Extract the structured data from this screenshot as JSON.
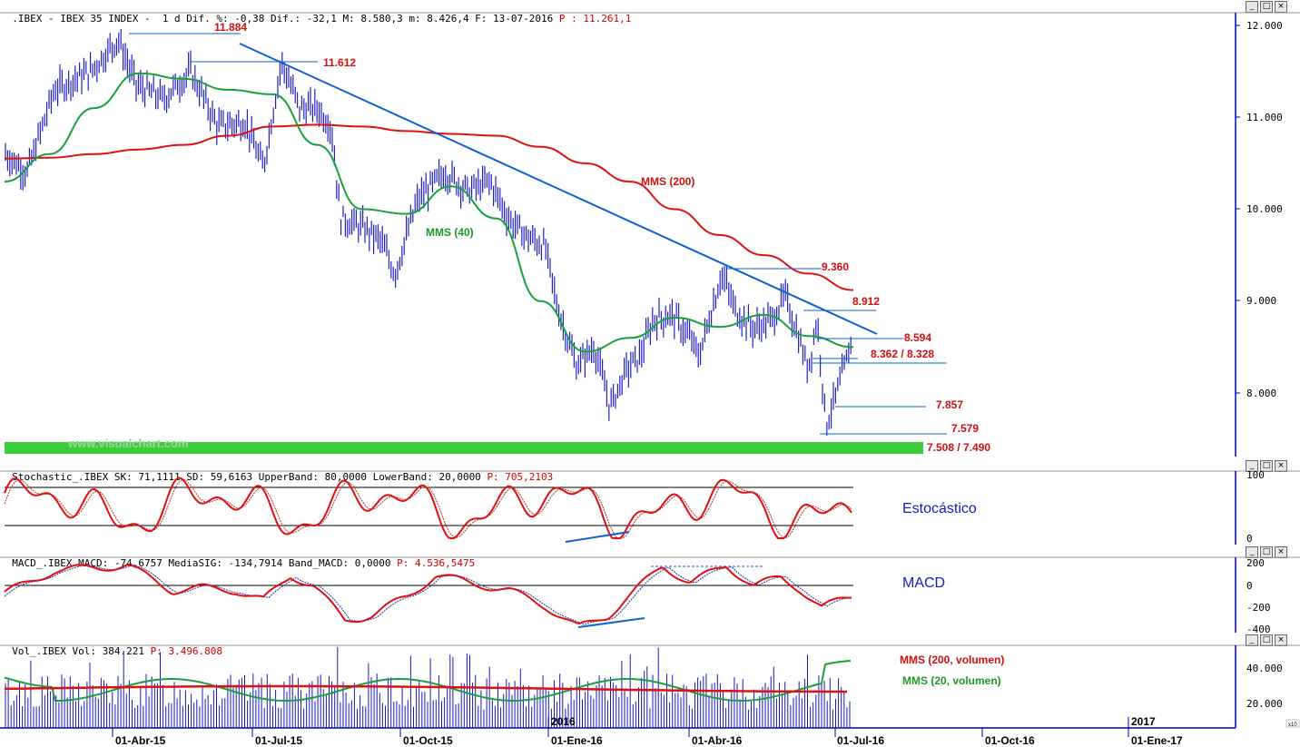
{
  "header_main": {
    "prefix": ".IBEX - IBEX 35 INDEX -  1 d Dif. %: -0,38 Dif.: -32,1 M: 8.580,3 m: 8.426,4 F: 13-07-2016 ",
    "suffix": "P : 11.261,1"
  },
  "header_stoch": {
    "prefix": "Stochastic_.IBEX SK: 71,1111 SD: 59,6163 UpperBand: 80,0000 LowerBand: 20,0000 ",
    "suffix": "P: 705,2103"
  },
  "header_macd": {
    "prefix": "MACD_.IBEX MACD: -74,6757 MediaSIG: -134,7914 Band_MACD: 0,0000 ",
    "suffix": "P: 4.536,5475"
  },
  "header_vol": {
    "prefix": "Vol_.IBEX Vol: 384.221 ",
    "suffix": "P: 3.496.808"
  },
  "watermark": "www.visualchart.com",
  "indicator_titles": {
    "stoch": "Estocástico",
    "macd": "MACD"
  },
  "colors": {
    "price": "#2020c8",
    "mms200": "#e01010",
    "mms40": "#1aa03a",
    "trend": "#1060d0",
    "support": "#3ccc3c",
    "axis_blue": "#0000c0"
  },
  "chart_data": [
    {
      "type": "line",
      "name": "price",
      "ylim": [
        7300,
        12100
      ],
      "yticks": [
        "12.000",
        "11.000",
        "10.000",
        "9.000",
        "8.000"
      ],
      "y_tick_values": [
        12000,
        11000,
        10000,
        9000,
        8000
      ],
      "xticks": [
        "01-Abr-15",
        "01-Jul-15",
        "01-Oct-15",
        "01-Ene-16",
        "01-Abr-16",
        "01-Jul-16",
        "01-Oct-16",
        "01-Ene-17"
      ],
      "year_marks": [
        "2016",
        "2017"
      ],
      "level_labels": [
        "11.884",
        "11.612",
        "9.360",
        "8.912",
        "8.594",
        "8.362 / 8.328",
        "7.857",
        "7.579",
        "7.508 / 7.490"
      ],
      "annotations": [
        "MMS (200)",
        "MMS (40)"
      ],
      "series": [
        {
          "name": "MMS (200)",
          "values": [
            10550,
            10560,
            10600,
            10650,
            10700,
            10800,
            10900,
            10920,
            10900,
            10850,
            10820,
            10800,
            10680,
            10500,
            10300,
            10000,
            9720,
            9500,
            9300,
            9120
          ]
        },
        {
          "name": "MMS (40)",
          "values": [
            10300,
            10600,
            11100,
            11480,
            11420,
            11300,
            11250,
            10700,
            10000,
            9950,
            10250,
            9900,
            9000,
            8450,
            8600,
            8820,
            8720,
            8850,
            8620,
            8500
          ]
        }
      ]
    },
    {
      "type": "line",
      "name": "stochastic",
      "ylim": [
        0,
        100
      ],
      "yticks": [
        "100",
        "0"
      ],
      "bands": [
        80,
        20
      ]
    },
    {
      "type": "line",
      "name": "macd",
      "ylim": [
        -450,
        220
      ],
      "yticks": [
        "200",
        "0",
        "-200",
        "-400"
      ]
    },
    {
      "type": "bar",
      "name": "volume",
      "yticks": [
        "40.000",
        "20.000"
      ],
      "legend": [
        "MMS (200, volumen)",
        "MMS (20, volumen)"
      ]
    }
  ]
}
